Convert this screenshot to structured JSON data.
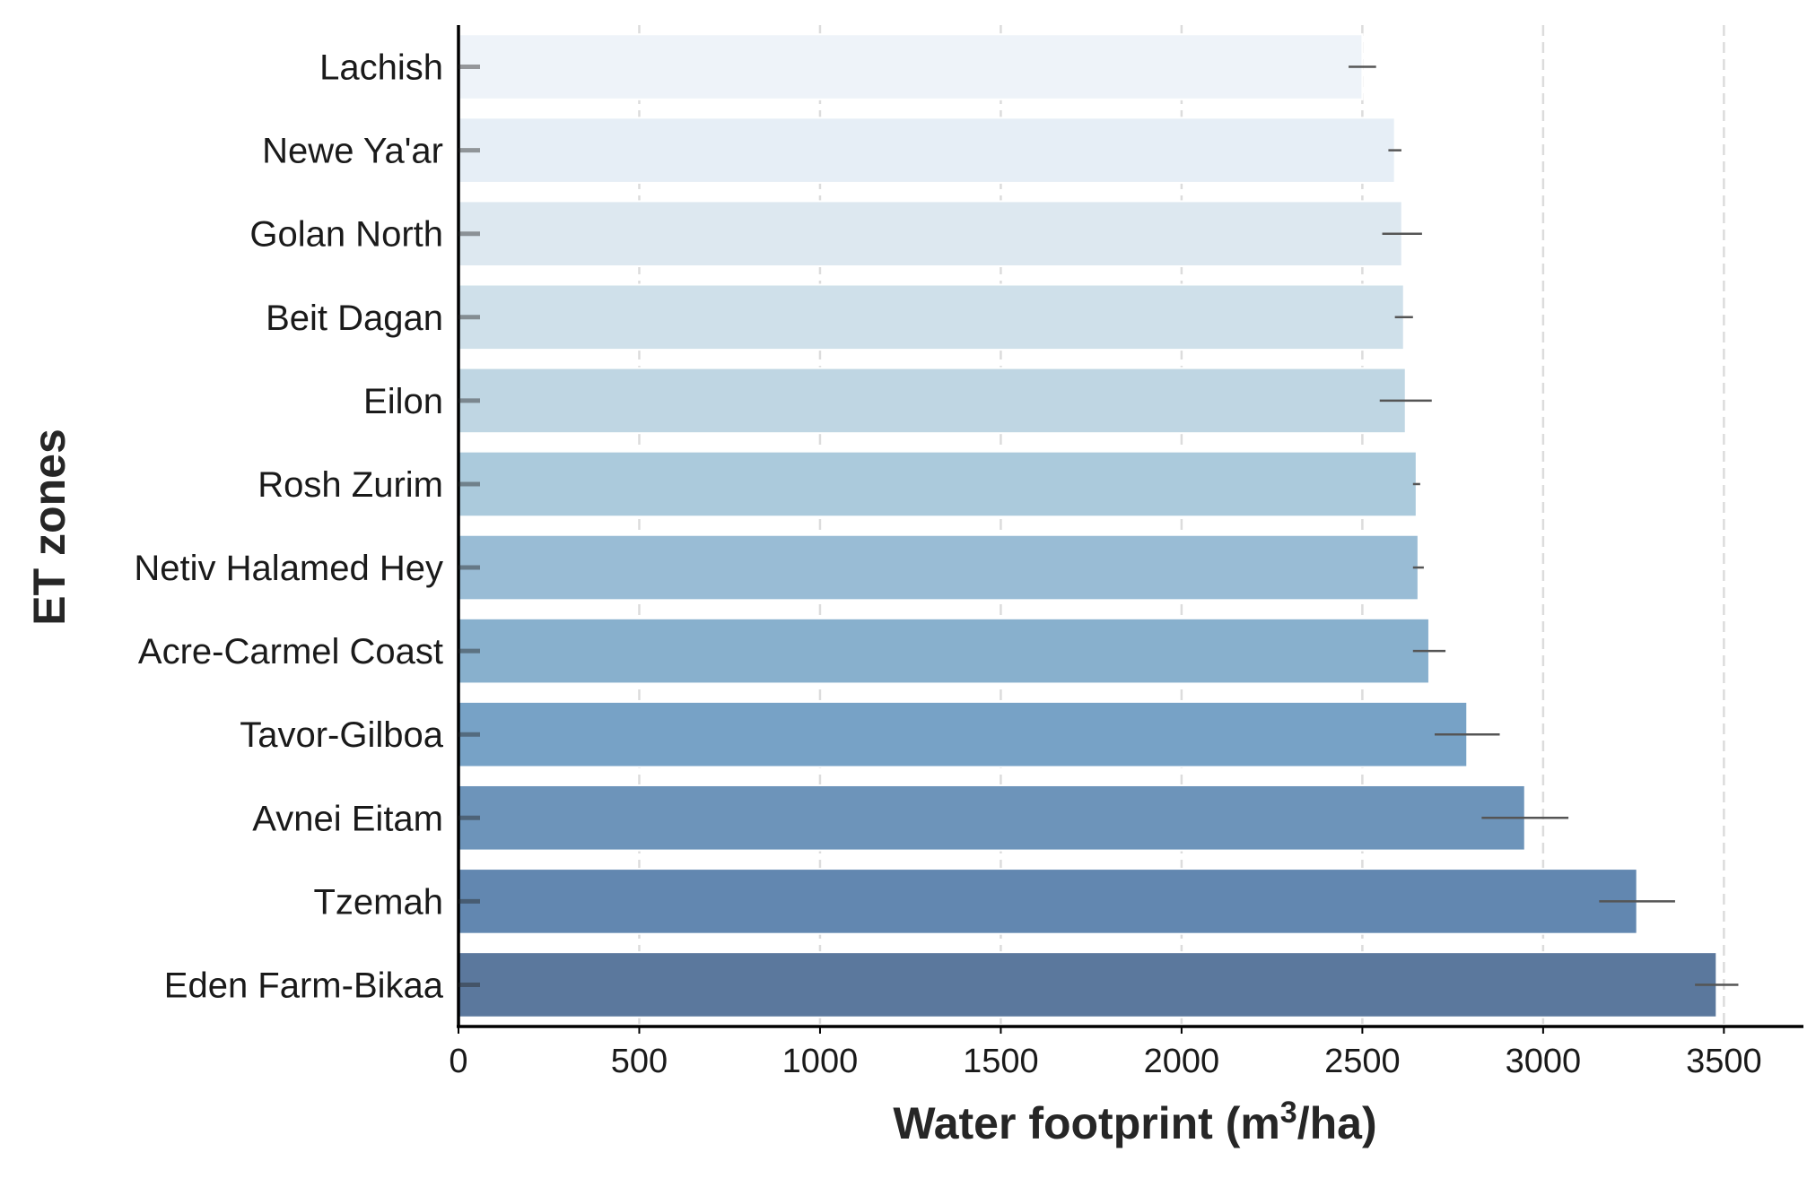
{
  "chart_data": {
    "type": "bar",
    "orientation": "horizontal",
    "xlabel_main": "Water footprint (m",
    "xlabel_sup": "3",
    "xlabel_tail": "/ha)",
    "ylabel": "ET zones",
    "xlim": [
      0,
      3720
    ],
    "xticks": [
      0,
      500,
      1000,
      1500,
      2000,
      2500,
      3000,
      3500
    ],
    "xtick_labels": [
      "0",
      "500",
      "1000",
      "1500",
      "2000",
      "2500",
      "3000",
      "3500"
    ],
    "grid": "vertical dashed",
    "categories": [
      "Lachish",
      "Newe Ya'ar",
      "Golan North",
      "Beit Dagan",
      "Eilon",
      "Rosh Zurim",
      "Netiv Halamed Hey",
      "Acre-Carmel Coast",
      "Tavor-Gilboa",
      "Avnei Eitam",
      "Tzemah",
      "Eden Farm-Bikaa"
    ],
    "values": [
      2500,
      2590,
      2610,
      2615,
      2620,
      2650,
      2655,
      2685,
      2790,
      2950,
      3260,
      3480
    ],
    "errors": [
      38,
      18,
      55,
      25,
      72,
      10,
      15,
      45,
      90,
      120,
      105,
      60
    ],
    "colors": [
      "#eef3f9",
      "#e6eef6",
      "#dde8f0",
      "#cfe0ea",
      "#bfd6e3",
      "#abcadc",
      "#99bcd5",
      "#88b0cd",
      "#77a2c6",
      "#6d94ba",
      "#6287b0",
      "#5b789d"
    ]
  }
}
